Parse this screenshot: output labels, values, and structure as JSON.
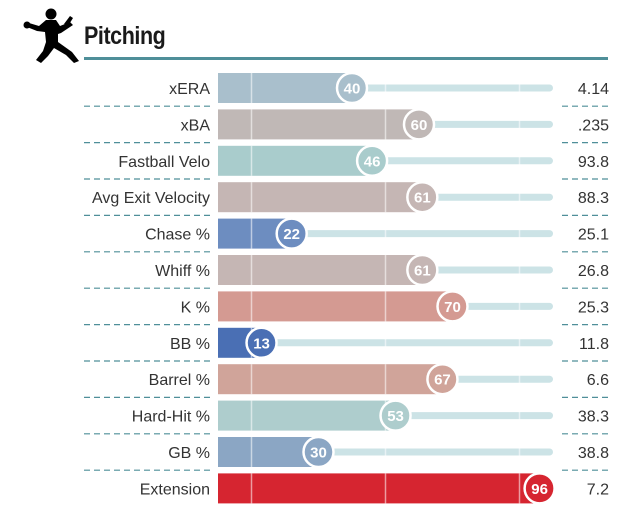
{
  "header": {
    "title": "Pitching",
    "icon": "pitcher-silhouette-icon"
  },
  "chart_data": {
    "type": "bar",
    "title": "Pitching",
    "xlim": [
      0,
      100
    ],
    "reference_lines": [
      10,
      50,
      90
    ],
    "categories": [
      "xERA",
      "xBA",
      "Fastball Velo",
      "Avg Exit Velocity",
      "Chase %",
      "Whiff %",
      "K %",
      "BB %",
      "Barrel %",
      "Hard-Hit %",
      "GB %",
      "Extension"
    ],
    "percentiles": [
      40,
      60,
      46,
      61,
      22,
      61,
      70,
      13,
      67,
      53,
      30,
      96
    ],
    "stat_values": [
      "4.14",
      ".235",
      "93.8",
      "88.3",
      "25.1",
      "26.8",
      "25.3",
      "11.8",
      "6.6",
      "38.3",
      "38.8",
      "7.2"
    ],
    "colors": [
      "#a9bfcc",
      "#c0b8b6",
      "#a9cccc",
      "#c5b6b4",
      "#6d8dc0",
      "#c5b6b4",
      "#d49a92",
      "#4a6fb4",
      "#d0a49a",
      "#aecdcd",
      "#8ba6c4",
      "#d62530"
    ],
    "track_color": "#cce3e6",
    "divider_color": "#4f8f99"
  }
}
